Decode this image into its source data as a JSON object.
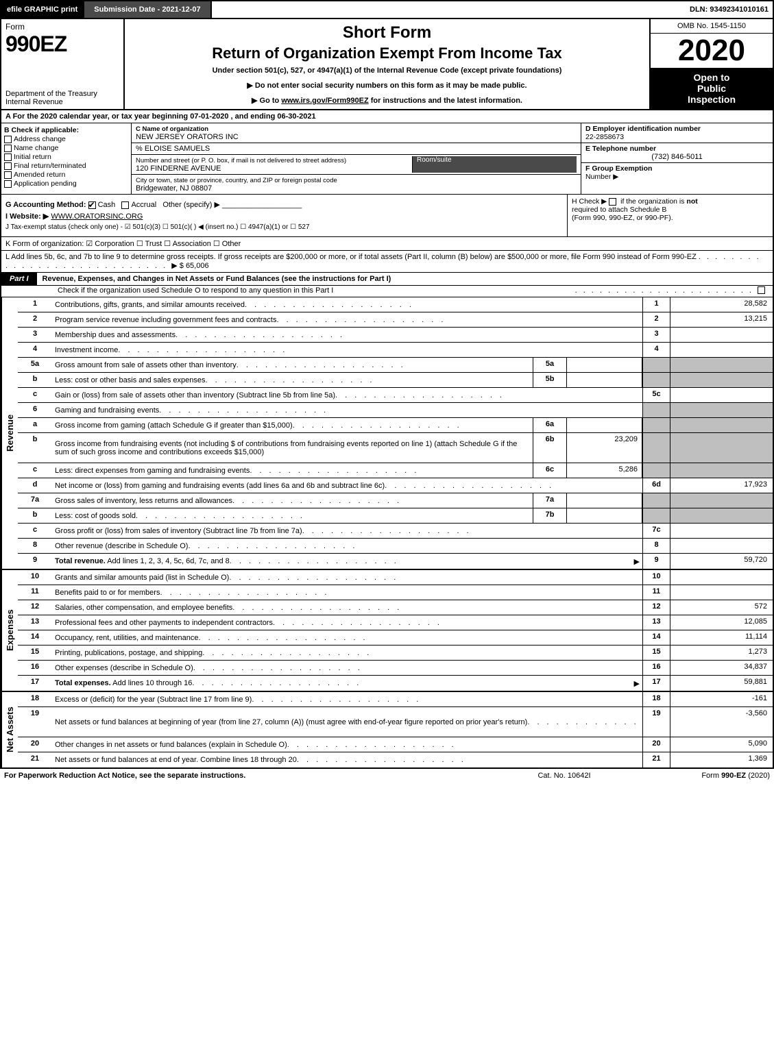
{
  "top_bar": {
    "efile": "efile GRAPHIC print",
    "submission": "Submission Date - 2021-12-07",
    "dln": "DLN: 93492341010161"
  },
  "header": {
    "form_word": "Form",
    "form_num": "990EZ",
    "dept1": "Department of the Treasury",
    "dept2": "Internal Revenue",
    "short_form": "Short Form",
    "title": "Return of Organization Exempt From Income Tax",
    "under": "Under section 501(c), 527, or 4947(a)(1) of the Internal Revenue Code (except private foundations)",
    "line1": "▶ Do not enter social security numbers on this form as it may be made public.",
    "line2_pre": "▶ Go to ",
    "line2_link": "www.irs.gov/Form990EZ",
    "line2_post": " for instructions and the latest information.",
    "omb": "OMB No. 1545-1150",
    "year": "2020",
    "open1": "Open to",
    "open2": "Public",
    "open3": "Inspection"
  },
  "row_a": "A  For the 2020 calendar year, or tax year beginning 07-01-2020 , and ending 06-30-2021",
  "col_b": {
    "title": "B  Check if applicable:",
    "items": [
      "Address change",
      "Name change",
      "Initial return",
      "Final return/terminated",
      "Amended return",
      "Application pending"
    ]
  },
  "col_c": {
    "label1": "C Name of organization",
    "org": "NEW JERSEY ORATORS INC",
    "care_of": "% ELOISE SAMUELS",
    "street_label": "Number and street (or P. O. box, if mail is not delivered to street address)",
    "street": "120 FINDERNE AVENUE",
    "room_label": "Room/suite",
    "city_label": "City or town, state or province, country, and ZIP or foreign postal code",
    "city": "Bridgewater, NJ  08807"
  },
  "col_d": {
    "label": "D Employer identification number",
    "ein": "22-2858673"
  },
  "col_e": {
    "label": "E Telephone number",
    "tel": "(732) 846-5011"
  },
  "col_f": {
    "label": "F Group Exemption",
    "label2": "Number   ▶"
  },
  "row_g": {
    "label": "G Accounting Method:",
    "cash": "Cash",
    "accrual": "Accrual",
    "other": "Other (specify) ▶"
  },
  "row_h": {
    "pre": "H  Check ▶",
    "txt1": "if the organization is ",
    "not": "not",
    "txt2": "required to attach Schedule B",
    "txt3": "(Form 990, 990-EZ, or 990-PF)."
  },
  "row_i": {
    "label": "I Website: ▶",
    "url": "WWW.ORATORSINC.ORG"
  },
  "row_j": "J Tax-exempt status (check only one) -  ☑ 501(c)(3)  ☐ 501(c)(  ) ◀ (insert no.)  ☐ 4947(a)(1) or  ☐ 527",
  "row_k": "K Form of organization:   ☑ Corporation   ☐ Trust   ☐ Association   ☐ Other",
  "row_l": {
    "txt": "L Add lines 5b, 6c, and 7b to line 9 to determine gross receipts. If gross receipts are $200,000 or more, or if total assets (Part II, column (B) below) are $500,000 or more, file Form 990 instead of Form 990-EZ",
    "amount": "▶ $ 65,006"
  },
  "part1": {
    "label": "Part I",
    "title": "Revenue, Expenses, and Changes in Net Assets or Fund Balances (see the instructions for Part I)",
    "sub": "Check if the organization used Schedule O to respond to any question in this Part I"
  },
  "sections": {
    "revenue": {
      "side": "Revenue",
      "rows": [
        {
          "n": "1",
          "d": "Contributions, gifts, grants, and similar amounts received",
          "ln": "1",
          "amt": "28,582"
        },
        {
          "n": "2",
          "d": "Program service revenue including government fees and contracts",
          "ln": "2",
          "amt": "13,215"
        },
        {
          "n": "3",
          "d": "Membership dues and assessments",
          "ln": "3",
          "amt": ""
        },
        {
          "n": "4",
          "d": "Investment income",
          "ln": "4",
          "amt": ""
        },
        {
          "n": "5a",
          "d": "Gross amount from sale of assets other than inventory",
          "sub": "5a",
          "subval": "",
          "shaded": true
        },
        {
          "n": "b",
          "d": "Less: cost or other basis and sales expenses",
          "sub": "5b",
          "subval": "",
          "shaded": true
        },
        {
          "n": "c",
          "d": "Gain or (loss) from sale of assets other than inventory (Subtract line 5b from line 5a)",
          "ln": "5c",
          "amt": ""
        },
        {
          "n": "6",
          "d": "Gaming and fundraising events",
          "shaded": true,
          "noln": true
        },
        {
          "n": "a",
          "d": "Gross income from gaming (attach Schedule G if greater than $15,000)",
          "sub": "6a",
          "subval": "",
          "shaded": true
        },
        {
          "n": "b",
          "d": "Gross income from fundraising events (not including $                     of contributions from fundraising events reported on line 1) (attach Schedule G if the sum of such gross income and contributions exceeds $15,000)",
          "sub": "6b",
          "subval": "23,209",
          "shaded": true,
          "tall": true
        },
        {
          "n": "c",
          "d": "Less: direct expenses from gaming and fundraising events",
          "sub": "6c",
          "subval": "5,286",
          "shaded": true
        },
        {
          "n": "d",
          "d": "Net income or (loss) from gaming and fundraising events (add lines 6a and 6b and subtract line 6c)",
          "ln": "6d",
          "amt": "17,923"
        },
        {
          "n": "7a",
          "d": "Gross sales of inventory, less returns and allowances",
          "sub": "7a",
          "subval": "",
          "shaded": true
        },
        {
          "n": "b",
          "d": "Less: cost of goods sold",
          "sub": "7b",
          "subval": "",
          "shaded": true
        },
        {
          "n": "c",
          "d": "Gross profit or (loss) from sales of inventory (Subtract line 7b from line 7a)",
          "ln": "7c",
          "amt": ""
        },
        {
          "n": "8",
          "d": "Other revenue (describe in Schedule O)",
          "ln": "8",
          "amt": ""
        },
        {
          "n": "9",
          "d": "Total revenue. Add lines 1, 2, 3, 4, 5c, 6d, 7c, and 8",
          "ln": "9",
          "amt": "59,720",
          "bold": true,
          "arrow": true
        }
      ]
    },
    "expenses": {
      "side": "Expenses",
      "rows": [
        {
          "n": "10",
          "d": "Grants and similar amounts paid (list in Schedule O)",
          "ln": "10",
          "amt": ""
        },
        {
          "n": "11",
          "d": "Benefits paid to or for members",
          "ln": "11",
          "amt": ""
        },
        {
          "n": "12",
          "d": "Salaries, other compensation, and employee benefits",
          "ln": "12",
          "amt": "572"
        },
        {
          "n": "13",
          "d": "Professional fees and other payments to independent contractors",
          "ln": "13",
          "amt": "12,085"
        },
        {
          "n": "14",
          "d": "Occupancy, rent, utilities, and maintenance",
          "ln": "14",
          "amt": "11,114"
        },
        {
          "n": "15",
          "d": "Printing, publications, postage, and shipping",
          "ln": "15",
          "amt": "1,273"
        },
        {
          "n": "16",
          "d": "Other expenses (describe in Schedule O)",
          "ln": "16",
          "amt": "34,837"
        },
        {
          "n": "17",
          "d": "Total expenses. Add lines 10 through 16",
          "ln": "17",
          "amt": "59,881",
          "bold": true,
          "arrow": true
        }
      ]
    },
    "netassets": {
      "side": "Net Assets",
      "rows": [
        {
          "n": "18",
          "d": "Excess or (deficit) for the year (Subtract line 17 from line 9)",
          "ln": "18",
          "amt": "-161"
        },
        {
          "n": "19",
          "d": "Net assets or fund balances at beginning of year (from line 27, column (A)) (must agree with end-of-year figure reported on prior year's return)",
          "ln": "19",
          "amt": "-3,560",
          "tall": true
        },
        {
          "n": "20",
          "d": "Other changes in net assets or fund balances (explain in Schedule O)",
          "ln": "20",
          "amt": "5,090"
        },
        {
          "n": "21",
          "d": "Net assets or fund balances at end of year. Combine lines 18 through 20",
          "ln": "21",
          "amt": "1,369"
        }
      ]
    }
  },
  "footer": {
    "left": "For Paperwork Reduction Act Notice, see the separate instructions.",
    "mid": "Cat. No. 10642I",
    "right_pre": "Form ",
    "right_bold": "990-EZ",
    "right_post": " (2020)"
  },
  "colors": {
    "black": "#000000",
    "darkgray": "#4a4a4a",
    "shaded": "#bfbfbf"
  }
}
